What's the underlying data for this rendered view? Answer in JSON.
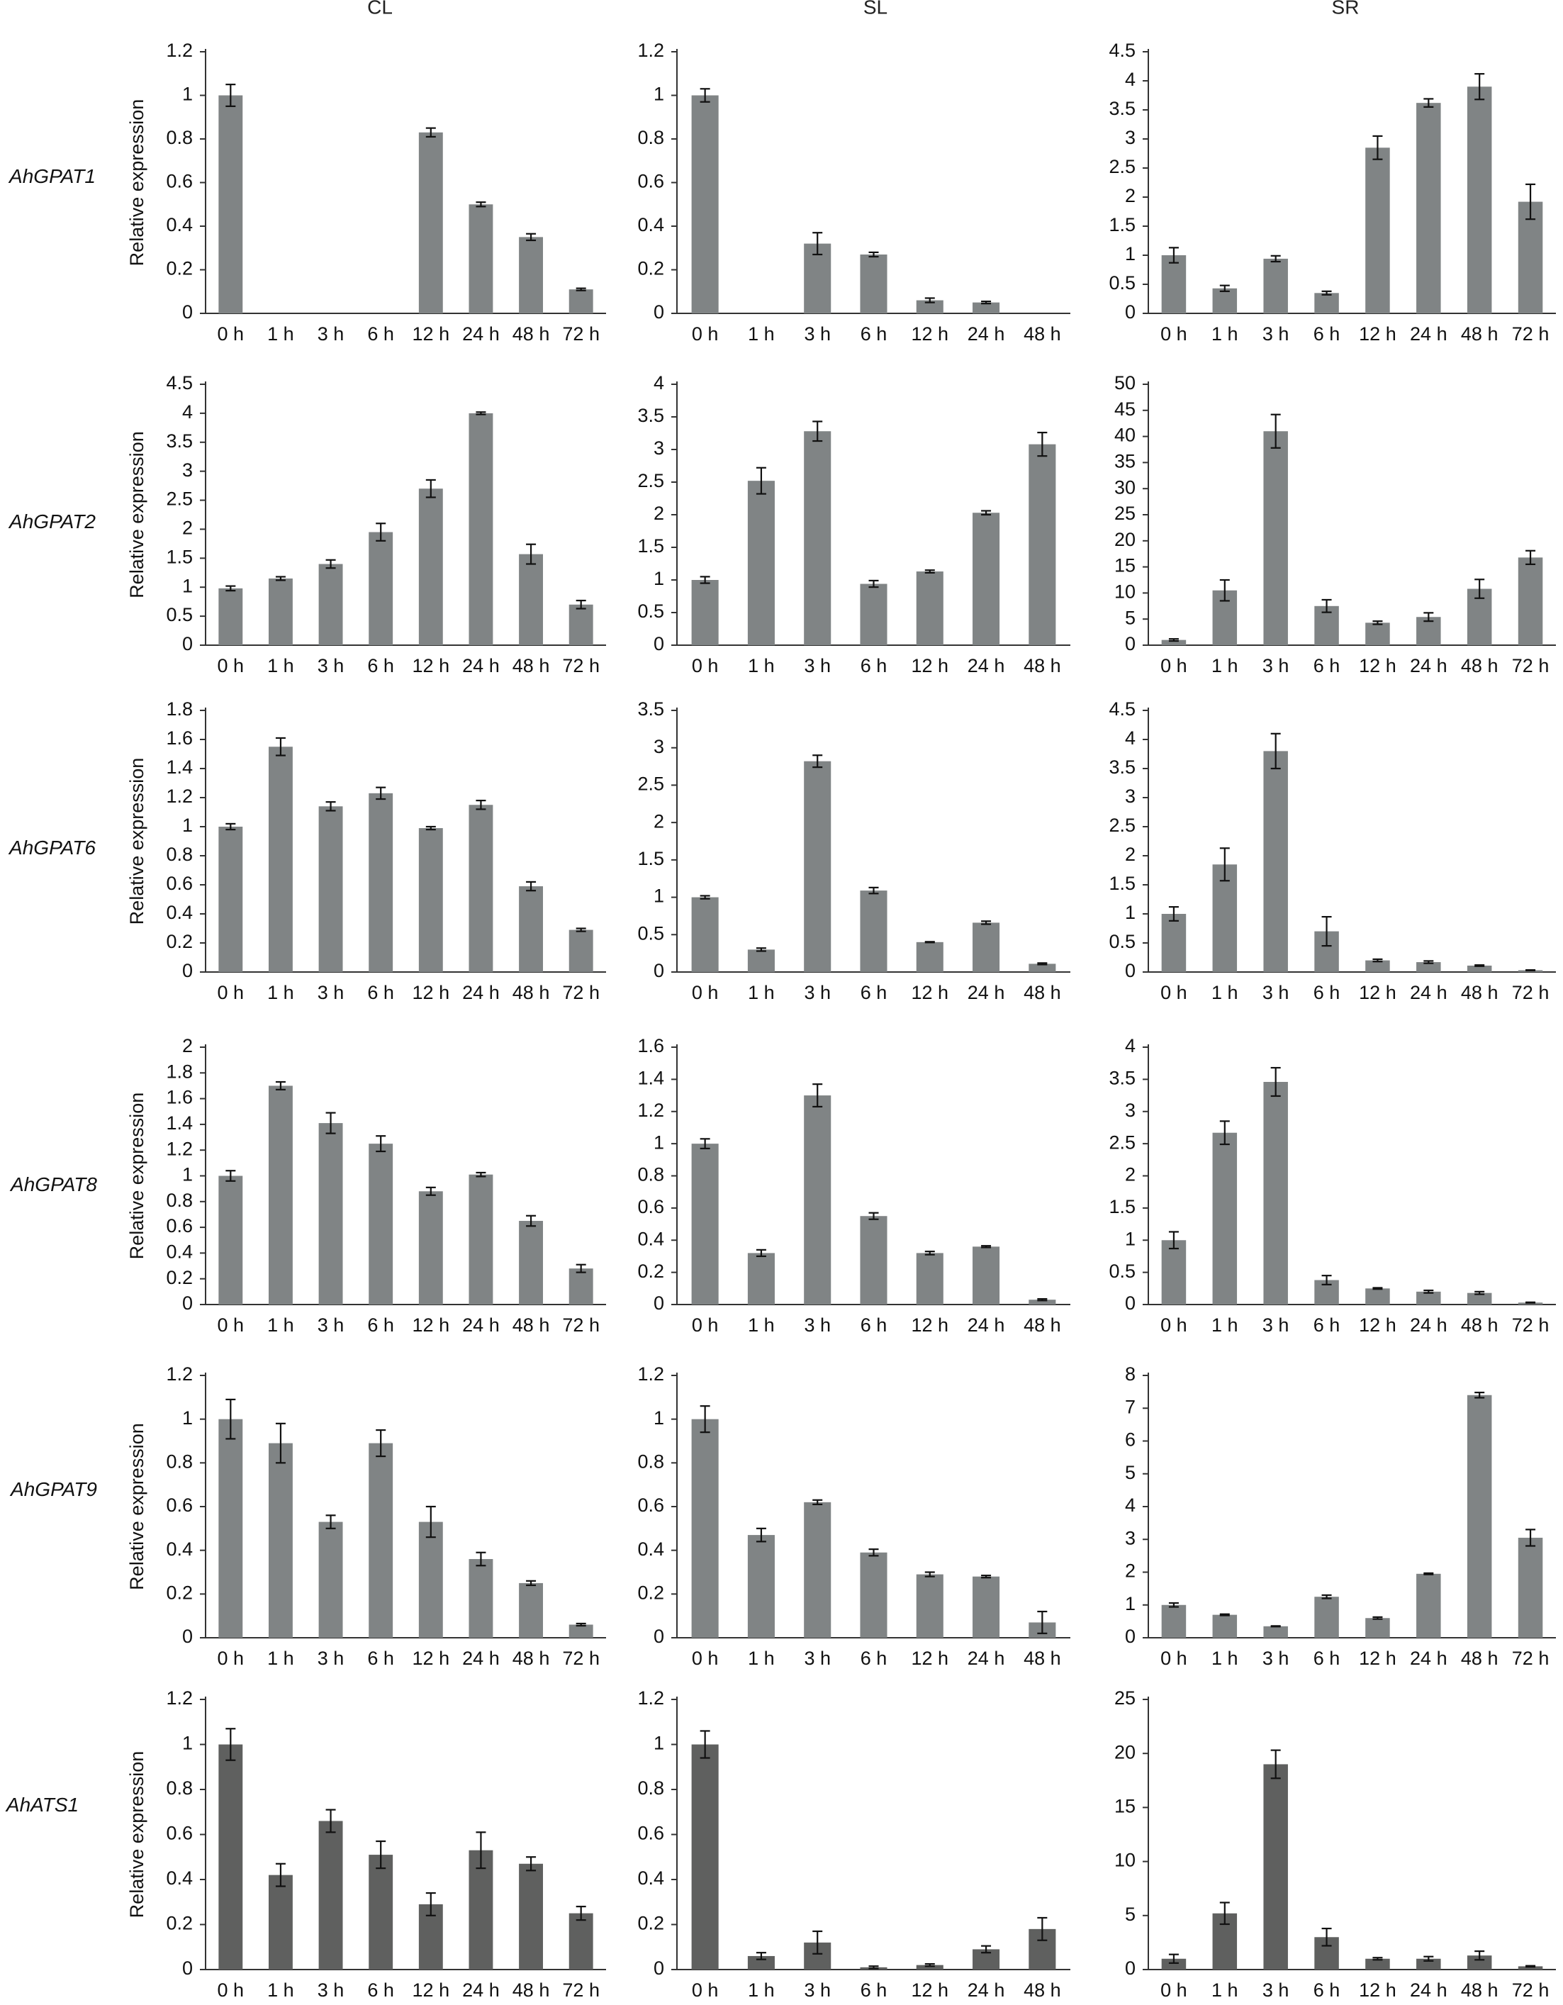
{
  "colors": {
    "bar": "#808485",
    "bar_dark": "#5f605f",
    "axis": "#333333",
    "text": "#111111"
  },
  "columns": [
    "CL",
    "SL",
    "SR"
  ],
  "genes": [
    "AhGPAT1",
    "AhGPAT2",
    "AhGPAT6",
    "AhGPAT8",
    "AhGPAT9",
    "AhATS1"
  ],
  "ylabel": "Relative expression",
  "chart_data": [
    {
      "type": "bar",
      "gene": "AhGPAT1",
      "tissue": "CL",
      "ylabel": "Relative expression",
      "categories": [
        "0 h",
        "1 h",
        "3 h",
        "6 h",
        "12 h",
        "24 h",
        "48 h",
        "72 h"
      ],
      "values": [
        1.0,
        0,
        0,
        0,
        0.83,
        0.5,
        0.35,
        0.11
      ],
      "errors": [
        0.05,
        0,
        0,
        0,
        0.02,
        0.01,
        0.015,
        0.005
      ],
      "ylim": [
        0,
        1.2
      ],
      "yticks": [
        "0",
        "0.2",
        "0.4",
        "0.6",
        "0.8",
        "1",
        "1.2"
      ],
      "ytick_values": [
        0,
        0.2,
        0.4,
        0.6,
        0.8,
        1,
        1.2
      ]
    },
    {
      "type": "bar",
      "gene": "AhGPAT1",
      "tissue": "SL",
      "ylabel": "",
      "categories": [
        "0 h",
        "1 h",
        "3 h",
        "6 h",
        "12 h",
        "24 h",
        "48 h"
      ],
      "values": [
        1.0,
        0,
        0.32,
        0.27,
        0.06,
        0.05,
        0
      ],
      "errors": [
        0.03,
        0,
        0.05,
        0.01,
        0.01,
        0.005,
        0
      ],
      "ylim": [
        0,
        1.2
      ],
      "yticks": [
        "0",
        "0.2",
        "0.4",
        "0.6",
        "0.8",
        "1",
        "1.2"
      ],
      "ytick_values": [
        0,
        0.2,
        0.4,
        0.6,
        0.8,
        1,
        1.2
      ]
    },
    {
      "type": "bar",
      "gene": "AhGPAT1",
      "tissue": "SR",
      "ylabel": "",
      "categories": [
        "0 h",
        "1 h",
        "3 h",
        "6 h",
        "12 h",
        "24 h",
        "48 h",
        "72 h"
      ],
      "values": [
        1.0,
        0.43,
        0.94,
        0.35,
        2.85,
        3.62,
        3.9,
        1.92
      ],
      "errors": [
        0.13,
        0.05,
        0.05,
        0.03,
        0.2,
        0.07,
        0.22,
        0.3
      ],
      "ylim": [
        0,
        4.5
      ],
      "yticks": [
        "0",
        "0.5",
        "1",
        "1.5",
        "2",
        "2.5",
        "3",
        "3.5",
        "4",
        "4.5"
      ],
      "ytick_values": [
        0,
        0.5,
        1,
        1.5,
        2,
        2.5,
        3,
        3.5,
        4,
        4.5
      ]
    },
    {
      "type": "bar",
      "gene": "AhGPAT2",
      "tissue": "CL",
      "ylabel": "Relative expression",
      "categories": [
        "0 h",
        "1 h",
        "3 h",
        "6 h",
        "12 h",
        "24 h",
        "48 h",
        "72 h"
      ],
      "values": [
        0.98,
        1.15,
        1.4,
        1.95,
        2.7,
        4.0,
        1.57,
        0.7
      ],
      "errors": [
        0.04,
        0.03,
        0.07,
        0.15,
        0.15,
        0.02,
        0.17,
        0.07
      ],
      "ylim": [
        0,
        4.5
      ],
      "yticks": [
        "0",
        "0.5",
        "1",
        "1.5",
        "2",
        "2.5",
        "3",
        "3.5",
        "4",
        "4.5"
      ],
      "ytick_values": [
        0,
        0.5,
        1,
        1.5,
        2,
        2.5,
        3,
        3.5,
        4,
        4.5
      ]
    },
    {
      "type": "bar",
      "gene": "AhGPAT2",
      "tissue": "SL",
      "ylabel": "",
      "categories": [
        "0 h",
        "1 h",
        "3 h",
        "6 h",
        "12 h",
        "24 h",
        "48 h"
      ],
      "values": [
        1.0,
        2.52,
        3.28,
        0.94,
        1.13,
        2.03,
        3.08
      ],
      "errors": [
        0.05,
        0.2,
        0.15,
        0.05,
        0.02,
        0.03,
        0.18
      ],
      "ylim": [
        0,
        4
      ],
      "yticks": [
        "0",
        "0.5",
        "1",
        "1.5",
        "2",
        "2.5",
        "3",
        "3.5",
        "4"
      ],
      "ytick_values": [
        0,
        0.5,
        1,
        1.5,
        2,
        2.5,
        3,
        3.5,
        4
      ]
    },
    {
      "type": "bar",
      "gene": "AhGPAT2",
      "tissue": "SR",
      "ylabel": "",
      "categories": [
        "0 h",
        "1 h",
        "3 h",
        "6 h",
        "12 h",
        "24 h",
        "48 h",
        "72 h"
      ],
      "values": [
        1.0,
        10.5,
        41.0,
        7.5,
        4.3,
        5.4,
        10.8,
        16.8
      ],
      "errors": [
        0.2,
        2.0,
        3.2,
        1.2,
        0.3,
        0.8,
        1.8,
        1.3
      ],
      "ylim": [
        0,
        50
      ],
      "yticks": [
        "0",
        "5",
        "10",
        "15",
        "20",
        "25",
        "30",
        "35",
        "40",
        "45",
        "50"
      ],
      "ytick_values": [
        0,
        5,
        10,
        15,
        20,
        25,
        30,
        35,
        40,
        45,
        50
      ]
    },
    {
      "type": "bar",
      "gene": "AhGPAT6",
      "tissue": "CL",
      "ylabel": "Relative expression",
      "categories": [
        "0 h",
        "1 h",
        "3 h",
        "6 h",
        "12 h",
        "24 h",
        "48 h",
        "72 h"
      ],
      "values": [
        1.0,
        1.55,
        1.14,
        1.23,
        0.99,
        1.15,
        0.59,
        0.29
      ],
      "errors": [
        0.02,
        0.06,
        0.03,
        0.04,
        0.01,
        0.03,
        0.03,
        0.01
      ],
      "ylim": [
        0,
        1.8
      ],
      "yticks": [
        "0",
        "0.2",
        "0.4",
        "0.6",
        "0.8",
        "1",
        "1.2",
        "1.4",
        "1.6",
        "1.8"
      ],
      "ytick_values": [
        0,
        0.2,
        0.4,
        0.6,
        0.8,
        1,
        1.2,
        1.4,
        1.6,
        1.8
      ]
    },
    {
      "type": "bar",
      "gene": "AhGPAT6",
      "tissue": "SL",
      "ylabel": "",
      "categories": [
        "0 h",
        "1 h",
        "3 h",
        "6 h",
        "12 h",
        "24 h",
        "48 h"
      ],
      "values": [
        1.0,
        0.3,
        2.82,
        1.09,
        0.4,
        0.66,
        0.11
      ],
      "errors": [
        0.02,
        0.02,
        0.08,
        0.04,
        0.005,
        0.02,
        0.01
      ],
      "ylim": [
        0,
        3.5
      ],
      "yticks": [
        "0",
        "0.5",
        "1",
        "1.5",
        "2",
        "2.5",
        "3",
        "3.5"
      ],
      "ytick_values": [
        0,
        0.5,
        1,
        1.5,
        2,
        2.5,
        3,
        3.5
      ]
    },
    {
      "type": "bar",
      "gene": "AhGPAT6",
      "tissue": "SR",
      "ylabel": "",
      "categories": [
        "0 h",
        "1 h",
        "3 h",
        "6 h",
        "12 h",
        "24 h",
        "48 h",
        "72 h"
      ],
      "values": [
        1.0,
        1.85,
        3.8,
        0.7,
        0.2,
        0.17,
        0.11,
        0.03
      ],
      "errors": [
        0.12,
        0.28,
        0.3,
        0.25,
        0.02,
        0.02,
        0.01,
        0.005
      ],
      "ylim": [
        0,
        4.5
      ],
      "yticks": [
        "0",
        "0.5",
        "1",
        "1.5",
        "2",
        "2.5",
        "3",
        "3.5",
        "4",
        "4.5"
      ],
      "ytick_values": [
        0,
        0.5,
        1,
        1.5,
        2,
        2.5,
        3,
        3.5,
        4,
        4.5
      ]
    },
    {
      "type": "bar",
      "gene": "AhGPAT8",
      "tissue": "CL",
      "ylabel": "Relative expression",
      "categories": [
        "0 h",
        "1 h",
        "3 h",
        "6 h",
        "12 h",
        "24 h",
        "48 h",
        "72 h"
      ],
      "values": [
        1.0,
        1.7,
        1.41,
        1.25,
        0.88,
        1.01,
        0.65,
        0.28
      ],
      "errors": [
        0.04,
        0.03,
        0.08,
        0.06,
        0.03,
        0.015,
        0.04,
        0.03
      ],
      "ylim": [
        0,
        2
      ],
      "yticks": [
        "0",
        "0.2",
        "0.4",
        "0.6",
        "0.8",
        "1",
        "1.2",
        "1.4",
        "1.6",
        "1.8",
        "2"
      ],
      "ytick_values": [
        0,
        0.2,
        0.4,
        0.6,
        0.8,
        1,
        1.2,
        1.4,
        1.6,
        1.8,
        2
      ]
    },
    {
      "type": "bar",
      "gene": "AhGPAT8",
      "tissue": "SL",
      "ylabel": "",
      "categories": [
        "0 h",
        "1 h",
        "3 h",
        "6 h",
        "12 h",
        "24 h",
        "48 h"
      ],
      "values": [
        1.0,
        0.32,
        1.3,
        0.55,
        0.32,
        0.36,
        0.03
      ],
      "errors": [
        0.03,
        0.02,
        0.07,
        0.02,
        0.01,
        0.005,
        0.005
      ],
      "ylim": [
        0,
        1.6
      ],
      "yticks": [
        "0",
        "0.2",
        "0.4",
        "0.6",
        "0.8",
        "1",
        "1.2",
        "1.4",
        "1.6"
      ],
      "ytick_values": [
        0,
        0.2,
        0.4,
        0.6,
        0.8,
        1,
        1.2,
        1.4,
        1.6
      ]
    },
    {
      "type": "bar",
      "gene": "AhGPAT8",
      "tissue": "SR",
      "ylabel": "",
      "categories": [
        "0 h",
        "1 h",
        "3 h",
        "6 h",
        "12 h",
        "24 h",
        "48 h",
        "72 h"
      ],
      "values": [
        1.0,
        2.67,
        3.46,
        0.38,
        0.25,
        0.2,
        0.18,
        0.03
      ],
      "errors": [
        0.13,
        0.18,
        0.22,
        0.07,
        0.01,
        0.02,
        0.02,
        0.005
      ],
      "ylim": [
        0,
        4
      ],
      "yticks": [
        "0",
        "0.5",
        "1",
        "1.5",
        "2",
        "2.5",
        "3",
        "3.5",
        "4"
      ],
      "ytick_values": [
        0,
        0.5,
        1,
        1.5,
        2,
        2.5,
        3,
        3.5,
        4
      ]
    },
    {
      "type": "bar",
      "gene": "AhGPAT9",
      "tissue": "CL",
      "ylabel": "Relative expression",
      "categories": [
        "0 h",
        "1 h",
        "3 h",
        "6 h",
        "12 h",
        "24 h",
        "48 h",
        "72 h"
      ],
      "values": [
        1.0,
        0.89,
        0.53,
        0.89,
        0.53,
        0.36,
        0.25,
        0.06
      ],
      "errors": [
        0.09,
        0.09,
        0.03,
        0.06,
        0.07,
        0.03,
        0.01,
        0.005
      ],
      "ylim": [
        0,
        1.2
      ],
      "yticks": [
        "0",
        "0.2",
        "0.4",
        "0.6",
        "0.8",
        "1",
        "1.2"
      ],
      "ytick_values": [
        0,
        0.2,
        0.4,
        0.6,
        0.8,
        1,
        1.2
      ]
    },
    {
      "type": "bar",
      "gene": "AhGPAT9",
      "tissue": "SL",
      "ylabel": "",
      "categories": [
        "0 h",
        "1 h",
        "3 h",
        "6 h",
        "12 h",
        "24 h",
        "48 h"
      ],
      "values": [
        1.0,
        0.47,
        0.62,
        0.39,
        0.29,
        0.28,
        0.07
      ],
      "errors": [
        0.06,
        0.03,
        0.01,
        0.015,
        0.01,
        0.005,
        0.05
      ],
      "ylim": [
        0,
        1.2
      ],
      "yticks": [
        "0",
        "0.2",
        "0.4",
        "0.6",
        "0.8",
        "1",
        "1.2"
      ],
      "ytick_values": [
        0,
        0.2,
        0.4,
        0.6,
        0.8,
        1,
        1.2
      ]
    },
    {
      "type": "bar",
      "gene": "AhGPAT9",
      "tissue": "SR",
      "ylabel": "",
      "categories": [
        "0 h",
        "1 h",
        "3 h",
        "6 h",
        "12 h",
        "24 h",
        "48 h",
        "72 h"
      ],
      "values": [
        1.0,
        0.7,
        0.35,
        1.25,
        0.6,
        1.95,
        7.4,
        3.05
      ],
      "errors": [
        0.06,
        0.02,
        0.01,
        0.05,
        0.03,
        0.02,
        0.08,
        0.25
      ],
      "ylim": [
        0,
        8
      ],
      "yticks": [
        "0",
        "1",
        "2",
        "3",
        "4",
        "5",
        "6",
        "7",
        "8"
      ],
      "ytick_values": [
        0,
        1,
        2,
        3,
        4,
        5,
        6,
        7,
        8
      ]
    },
    {
      "type": "bar",
      "gene": "AhATS1",
      "tissue": "CL",
      "ylabel": "Relative expression",
      "categories": [
        "0 h",
        "1 h",
        "3 h",
        "6 h",
        "12 h",
        "24 h",
        "48 h",
        "72 h"
      ],
      "values": [
        1.0,
        0.42,
        0.66,
        0.51,
        0.29,
        0.53,
        0.47,
        0.25
      ],
      "errors": [
        0.07,
        0.05,
        0.05,
        0.06,
        0.05,
        0.08,
        0.03,
        0.03
      ],
      "ylim": [
        0,
        1.2
      ],
      "yticks": [
        "0",
        "0.2",
        "0.4",
        "0.6",
        "0.8",
        "1",
        "1.2"
      ],
      "ytick_values": [
        0,
        0.2,
        0.4,
        0.6,
        0.8,
        1,
        1.2
      ]
    },
    {
      "type": "bar",
      "gene": "AhATS1",
      "tissue": "SL",
      "ylabel": "",
      "categories": [
        "0 h",
        "1 h",
        "3 h",
        "6 h",
        "12 h",
        "24 h",
        "48 h"
      ],
      "values": [
        1.0,
        0.06,
        0.12,
        0.01,
        0.02,
        0.09,
        0.18
      ],
      "errors": [
        0.06,
        0.015,
        0.05,
        0.005,
        0.005,
        0.015,
        0.05
      ],
      "ylim": [
        0,
        1.2
      ],
      "yticks": [
        "0",
        "0.2",
        "0.4",
        "0.6",
        "0.8",
        "1",
        "1.2"
      ],
      "ytick_values": [
        0,
        0.2,
        0.4,
        0.6,
        0.8,
        1,
        1.2
      ]
    },
    {
      "type": "bar",
      "gene": "AhATS1",
      "tissue": "SR",
      "ylabel": "",
      "categories": [
        "0 h",
        "1 h",
        "3 h",
        "6 h",
        "12 h",
        "24 h",
        "48 h",
        "72 h"
      ],
      "values": [
        1.0,
        5.2,
        19.0,
        3.0,
        1.0,
        1.0,
        1.3,
        0.3
      ],
      "errors": [
        0.4,
        1.0,
        1.3,
        0.8,
        0.1,
        0.2,
        0.4,
        0.05
      ],
      "ylim": [
        0,
        25
      ],
      "yticks": [
        "0",
        "5",
        "10",
        "15",
        "20",
        "25"
      ],
      "ytick_values": [
        0,
        5,
        10,
        15,
        20,
        25
      ]
    }
  ]
}
